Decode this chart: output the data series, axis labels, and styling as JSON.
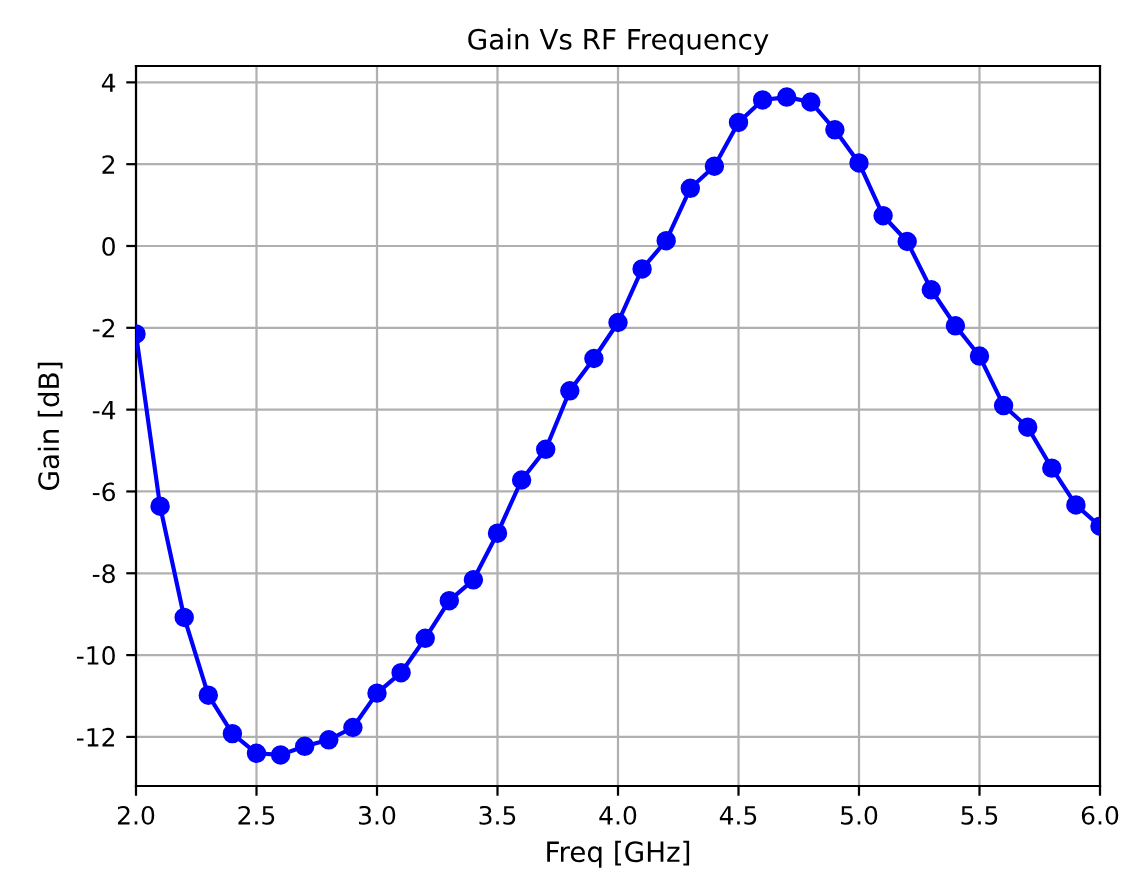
{
  "chart_data": {
    "type": "line",
    "title": "Gain Vs RF Frequency",
    "xlabel": "Freq [GHz]",
    "ylabel": "Gain [dB]",
    "x": [
      2.0,
      2.1,
      2.2,
      2.3,
      2.4,
      2.5,
      2.6,
      2.7,
      2.8,
      2.9,
      3.0,
      3.1,
      3.2,
      3.3,
      3.4,
      3.5,
      3.6,
      3.7,
      3.8,
      3.9,
      4.0,
      4.1,
      4.2,
      4.3,
      4.4,
      4.5,
      4.6,
      4.7,
      4.8,
      4.9,
      5.0,
      5.1,
      5.2,
      5.3,
      5.4,
      5.5,
      5.6,
      5.7,
      5.8,
      5.9,
      6.0
    ],
    "series": [
      {
        "color": "#0000ff",
        "values": [
          -2.15,
          -6.36,
          -9.08,
          -10.98,
          -11.92,
          -12.4,
          -12.44,
          -12.23,
          -12.07,
          -11.77,
          -10.93,
          -10.43,
          -9.59,
          -8.67,
          -8.16,
          -7.02,
          -5.72,
          -4.97,
          -3.54,
          -2.75,
          -1.87,
          -0.56,
          0.13,
          1.41,
          1.95,
          3.02,
          3.57,
          3.64,
          3.52,
          2.84,
          2.03,
          0.74,
          0.11,
          -1.07,
          -1.95,
          -2.69,
          -3.9,
          -4.43,
          -5.43,
          -6.33,
          -6.85
        ]
      }
    ],
    "xlim": [
      2.0,
      6.0
    ],
    "xticks": [
      {
        "value": 2.0,
        "label": "2.0"
      },
      {
        "value": 2.5,
        "label": "2.5"
      },
      {
        "value": 3.0,
        "label": "3.0"
      },
      {
        "value": 3.5,
        "label": "3.5"
      },
      {
        "value": 4.0,
        "label": "4.0"
      },
      {
        "value": 4.5,
        "label": "4.5"
      },
      {
        "value": 5.0,
        "label": "5.0"
      },
      {
        "value": 5.5,
        "label": "5.5"
      },
      {
        "value": 6.0,
        "label": "6.0"
      }
    ],
    "ylim": [
      -13.2,
      4.4
    ],
    "yticks": [
      -12,
      -10,
      -8,
      -6,
      -4,
      -2,
      0,
      2,
      4
    ],
    "grid": true,
    "marker": "circle",
    "line_style": "solid"
  }
}
